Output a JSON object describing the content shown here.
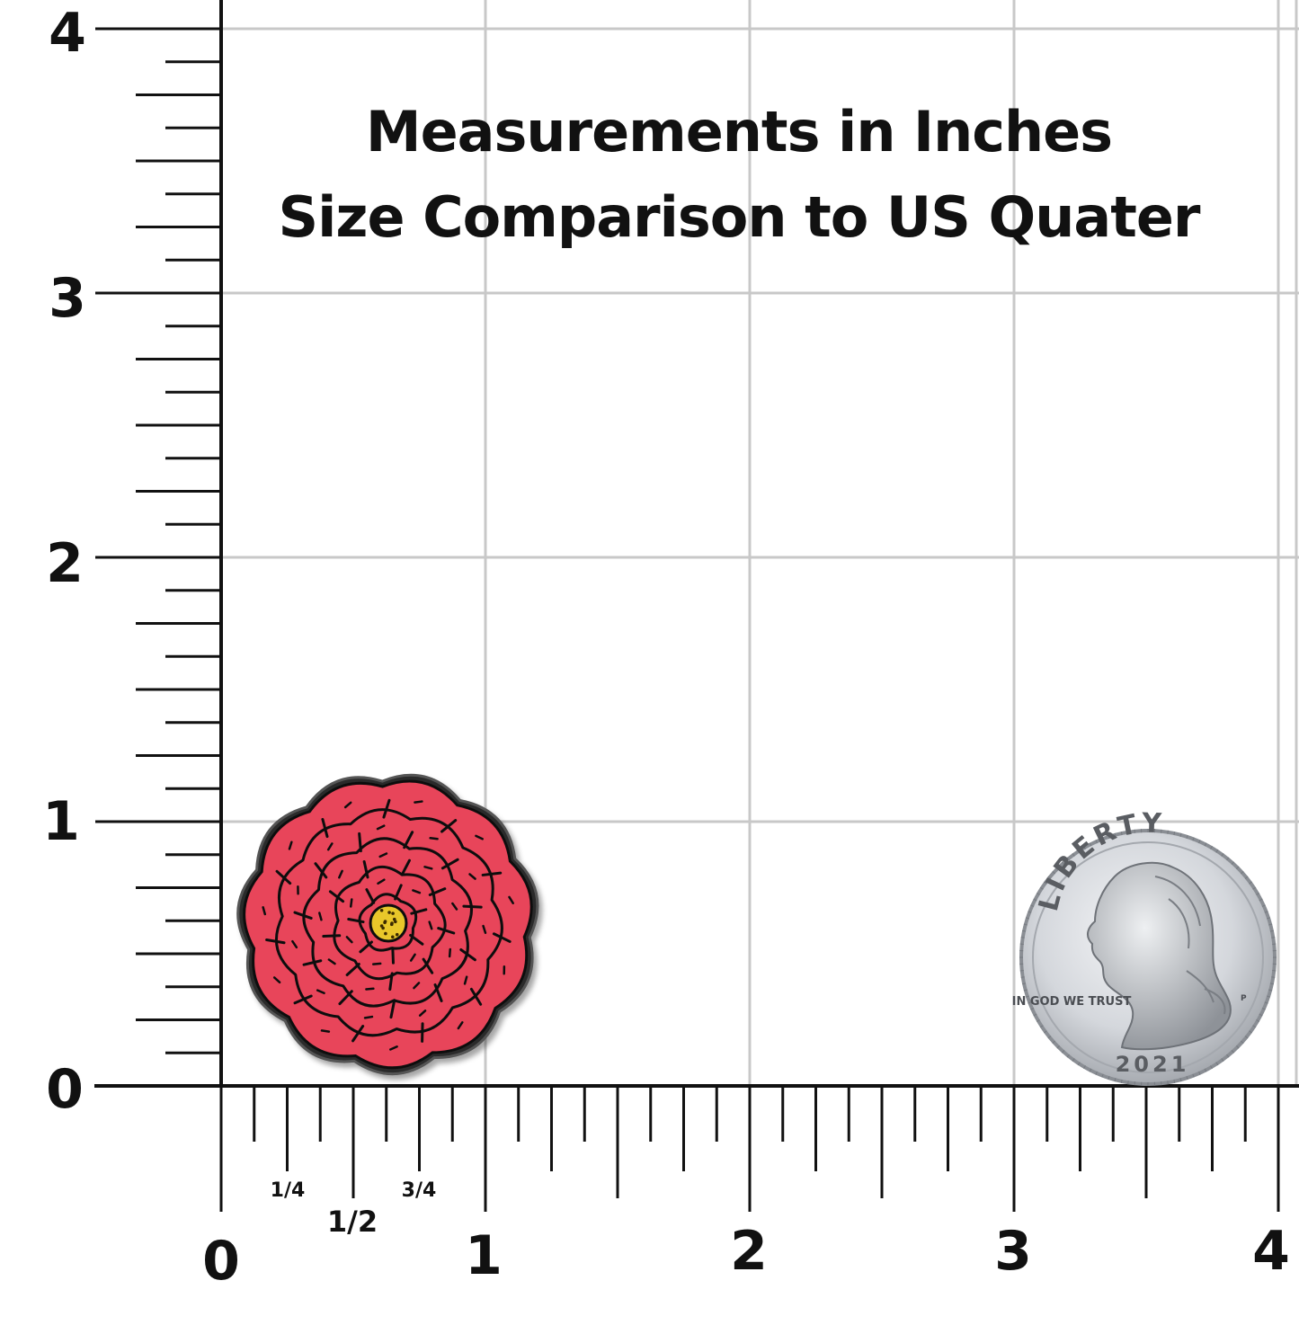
{
  "title": {
    "line1": "Measurements in Inches",
    "line2": "Size Comparison to US Quater"
  },
  "x_axis": {
    "labels": [
      "0",
      "1",
      "2",
      "3",
      "4"
    ],
    "fractions": [
      "1/4",
      "1/2",
      "3/4"
    ],
    "range": [
      0,
      4
    ]
  },
  "y_axis": {
    "labels": [
      "0",
      "1",
      "2",
      "3",
      "4"
    ],
    "range": [
      0,
      4
    ]
  },
  "grid": true,
  "pin": {
    "name_icon": "pink-flower-pin-icon",
    "petal_color": "#e8455a",
    "center_color": "#e8c72a",
    "outline_color": "#111111"
  },
  "coin": {
    "legend_top": "LIBERTY",
    "motto": "IN GOD WE TRUST",
    "year": "2021",
    "mint_mark": "P",
    "metal_color": "#c9ccd1"
  }
}
